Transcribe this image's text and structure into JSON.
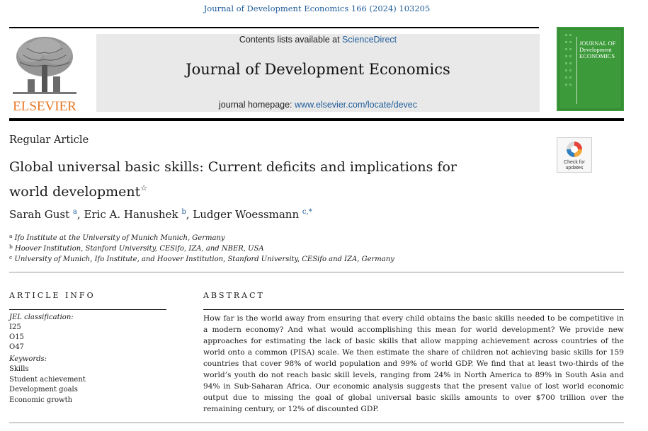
{
  "header": {
    "citation": "Journal of Development Economics 166 (2024) 103205",
    "contents_prefix": "Contents lists available at ",
    "contents_link": "ScienceDirect",
    "journal_title": "Journal of Development Economics",
    "homepage_prefix": "journal homepage: ",
    "homepage_link": "www.elsevier.com/locate/devec",
    "publisher_logo_text": "ELSEVIER",
    "cover_lines": [
      "JOURNAL OF",
      "Development",
      "ECONOMICS"
    ],
    "crossmark_text": [
      "Check for",
      "updates"
    ]
  },
  "article": {
    "type": "Regular Article",
    "title_line1": "Global universal basic skills: Current deficits and implications for",
    "title_line2": "world development",
    "title_mark": "☆",
    "authors": [
      {
        "name": "Sarah Gust",
        "sup": "a",
        "sep": ", "
      },
      {
        "name": "Eric A. Hanushek",
        "sup": "b",
        "sep": ", "
      },
      {
        "name": "Ludger Woessmann",
        "sup": "c,*",
        "sep": ""
      }
    ],
    "affiliations": [
      {
        "mark": "a",
        "text": "Ifo Institute at the University of Munich Munich, Germany"
      },
      {
        "mark": "b",
        "text": "Hoover Institution, Stanford University, CESifo, IZA, and NBER, USA"
      },
      {
        "mark": "c",
        "text": "University of Munich, Ifo Institute, and Hoover Institution, Stanford University, CESifo and IZA, Germany"
      }
    ]
  },
  "article_info": {
    "heading": "ARTICLE INFO",
    "jel_label": "JEL classification:",
    "jel_codes": [
      "I25",
      "O15",
      "O47"
    ],
    "keywords_label": "Keywords:",
    "keywords": [
      "Skills",
      "Student achievement",
      "Development goals",
      "Economic growth"
    ]
  },
  "abstract": {
    "heading": "ABSTRACT",
    "text": "How far is the world away from ensuring that every child obtains the basic skills needed to be competitive in a modern economy? And what would accomplishing this mean for world development? We provide new approaches for estimating the lack of basic skills that allow mapping achievement across countries of the world onto a common (PISA) scale. We then estimate the share of children not achieving basic skills for 159 countries that cover 98% of world population and 99% of world GDP. We find that at least two-thirds of the world’s youth do not reach basic skill levels, ranging from 24% in North America to 89% in South Asia and 94% in Sub-Saharan Africa. Our economic analysis suggests that the present value of lost world economic output due to missing the goal of global universal basic skills amounts to over $700 trillion over the remaining century, or 12% of discounted GDP."
  },
  "colors": {
    "link": "#1f5c99",
    "elsevier_orange": "#e87722",
    "cover_green": "#3c9a3a",
    "banner_gray": "#e9e9e9"
  }
}
